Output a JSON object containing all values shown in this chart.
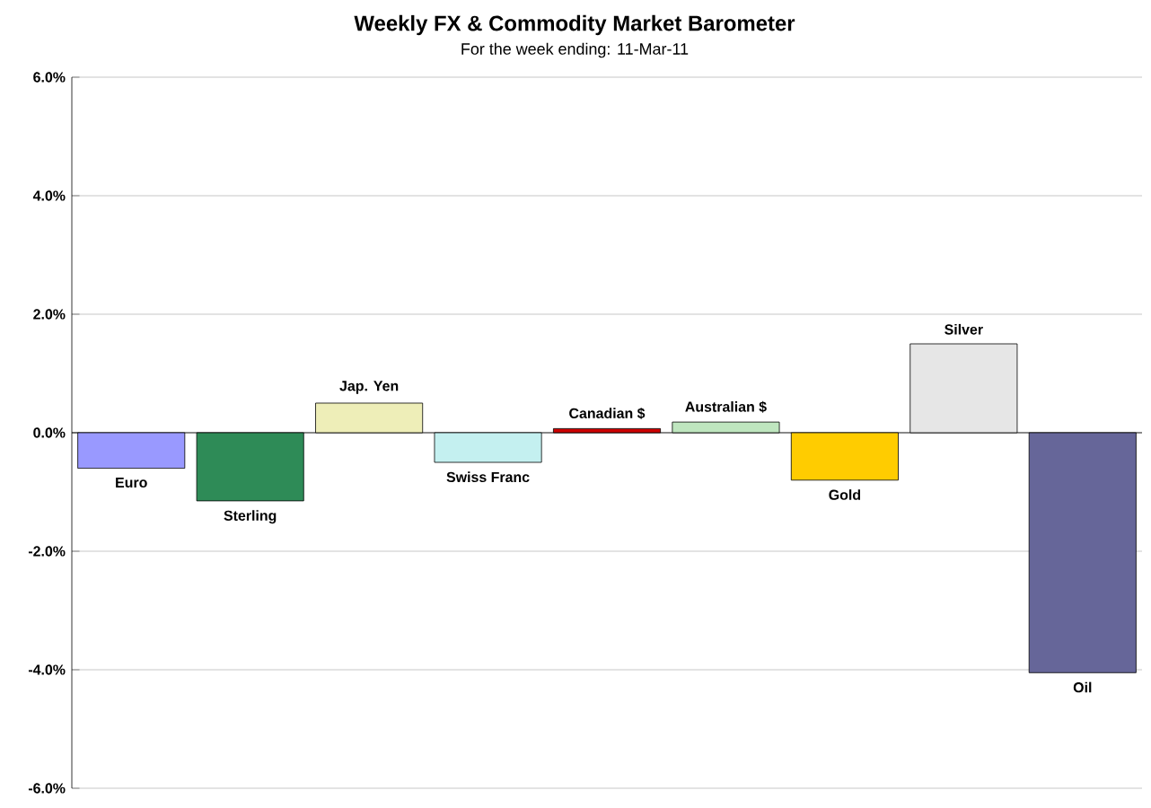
{
  "chart_data": {
    "type": "bar",
    "title": "Weekly FX & Commodity  Market Barometer",
    "subtitle": "For the week ending:  11-Mar-11",
    "categories": [
      "Euro",
      "Sterling",
      "Jap. Yen",
      "Swiss Franc",
      "Canadian $",
      "Australian $",
      "Gold",
      "Silver",
      "Oil"
    ],
    "values": [
      -0.6,
      -1.15,
      0.5,
      -0.5,
      0.07,
      0.18,
      -0.8,
      1.5,
      -4.05
    ],
    "colors": [
      "#9999ff",
      "#2e8b57",
      "#eeeeb8",
      "#c4f0f0",
      "#cc0000",
      "#bfe6bf",
      "#ffcc00",
      "#e6e6e6",
      "#666699"
    ],
    "ylim": [
      -6,
      6
    ],
    "yticks": [
      {
        "value": -6,
        "label": "-6.0%"
      },
      {
        "value": -4,
        "label": "-4.0%"
      },
      {
        "value": -2,
        "label": "-2.0%"
      },
      {
        "value": 0,
        "label": "0.0%"
      },
      {
        "value": 2,
        "label": "2.0%"
      },
      {
        "value": 4,
        "label": "4.0%"
      },
      {
        "value": 6,
        "label": "6.0%"
      }
    ],
    "grid": "y"
  }
}
